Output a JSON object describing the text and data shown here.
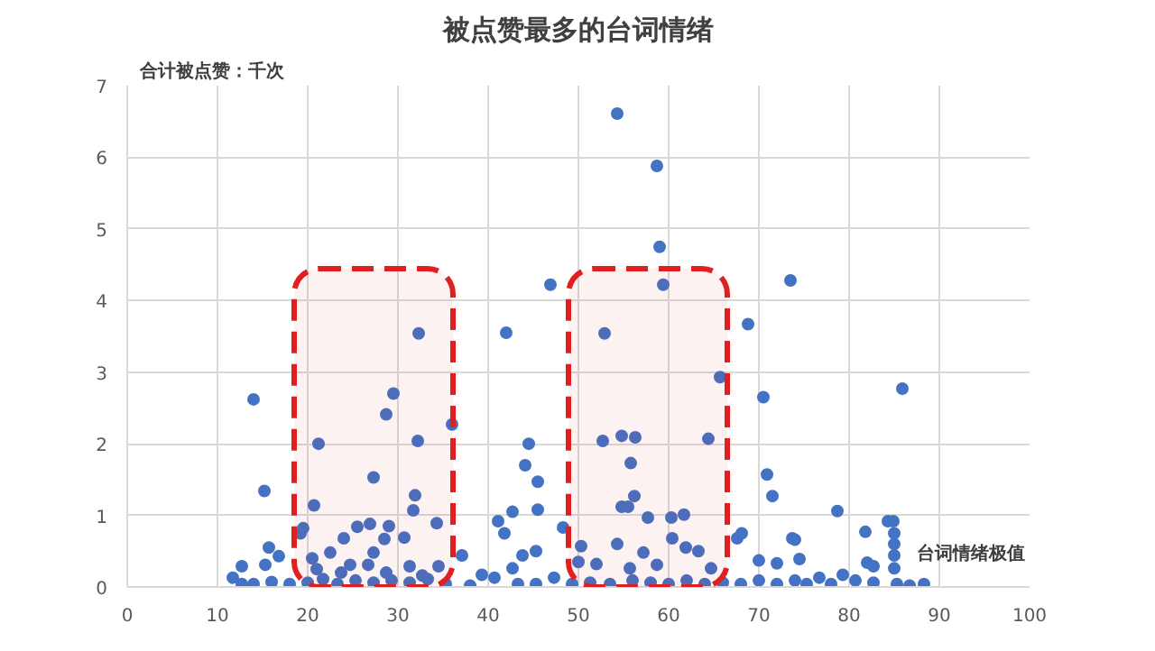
{
  "chart_data": {
    "type": "scatter",
    "title": "被点赞最多的台词情绪",
    "xlabel": "台词情绪极值",
    "ylabel": "合计被点赞：千次",
    "xlim": [
      0,
      100
    ],
    "xticks": [
      0,
      10,
      20,
      30,
      40,
      50,
      60,
      70,
      80,
      90,
      100
    ],
    "ylim": [
      0,
      7
    ],
    "yticks": [
      0,
      1,
      2,
      3,
      4,
      5,
      6,
      7
    ],
    "grid": true,
    "marker": "circle",
    "bands": [
      {
        "axis": "x",
        "from": 18.5,
        "to": 36.1,
        "color": "#e02020"
      },
      {
        "axis": "x",
        "from": 48.9,
        "to": 66.5,
        "color": "#e02020"
      }
    ],
    "series": [
      {
        "color": "#4472c4",
        "x": [
          14.0,
          15.2,
          21.2,
          29.5,
          28.7,
          32.2,
          32.3,
          36.0,
          27.3,
          31.9,
          31.7,
          20.7,
          34.3,
          19.5,
          19.2,
          25.5,
          26.9,
          29.0,
          30.7,
          28.5,
          24.0,
          15.7,
          16.8,
          37.1,
          20.5,
          22.5,
          27.3,
          12.7,
          15.3,
          21.0,
          24.7,
          26.7,
          31.3,
          34.5,
          11.7,
          14.0,
          16.0,
          18.0,
          20.0,
          21.7,
          23.3,
          25.3,
          27.3,
          29.3,
          31.3,
          33.3,
          35.3,
          12.7,
          23.7,
          28.7,
          32.7,
          54.3,
          58.7,
          59.0,
          46.9,
          59.4,
          73.5,
          42.0,
          52.9,
          68.8,
          65.7,
          70.5,
          44.5,
          52.7,
          54.8,
          56.3,
          64.4,
          44.1,
          55.8,
          45.5,
          70.9,
          71.5,
          56.2,
          54.8,
          55.5,
          57.7,
          60.3,
          61.7,
          42.7,
          45.5,
          41.1,
          41.8,
          48.3,
          60.4,
          67.6,
          68.1,
          73.7,
          50.3,
          54.3,
          57.2,
          61.9,
          63.3,
          43.8,
          45.3,
          52.0,
          50.0,
          55.7,
          58.7,
          70.0,
          72.0,
          74.5,
          42.7,
          64.7,
          39.3,
          40.7,
          38.0,
          43.3,
          45.3,
          47.3,
          49.3,
          51.3,
          53.5,
          56.0,
          58.0,
          60.0,
          62.0,
          64.0,
          66.0,
          68.0,
          70.0,
          72.0,
          74.0,
          85.9,
          78.7,
          84.3,
          84.9,
          81.8,
          85.0,
          85.0,
          82.0,
          82.7,
          85.0,
          85.0,
          76.7,
          79.3,
          80.7,
          82.7,
          85.3,
          86.7,
          88.3,
          75.3,
          78.0,
          74.0
        ],
        "values": [
          2.62,
          1.34,
          2.0,
          2.7,
          2.41,
          2.04,
          3.54,
          2.27,
          1.53,
          1.28,
          1.07,
          1.14,
          0.89,
          0.82,
          0.75,
          0.84,
          0.88,
          0.85,
          0.69,
          0.67,
          0.68,
          0.55,
          0.43,
          0.44,
          0.4,
          0.48,
          0.48,
          0.29,
          0.31,
          0.25,
          0.31,
          0.31,
          0.29,
          0.29,
          0.13,
          0.04,
          0.07,
          0.04,
          0.06,
          0.11,
          0.04,
          0.09,
          0.06,
          0.09,
          0.06,
          0.11,
          0.04,
          0.04,
          0.2,
          0.2,
          0.16,
          6.61,
          5.88,
          4.75,
          4.22,
          4.22,
          4.28,
          3.55,
          3.54,
          3.67,
          2.93,
          2.65,
          2.0,
          2.04,
          2.11,
          2.09,
          2.07,
          1.7,
          1.73,
          1.47,
          1.57,
          1.27,
          1.27,
          1.12,
          1.12,
          0.97,
          0.97,
          1.01,
          1.05,
          1.08,
          0.92,
          0.75,
          0.83,
          0.68,
          0.68,
          0.75,
          0.68,
          0.57,
          0.6,
          0.48,
          0.55,
          0.5,
          0.44,
          0.5,
          0.32,
          0.35,
          0.26,
          0.31,
          0.37,
          0.33,
          0.39,
          0.26,
          0.26,
          0.17,
          0.13,
          0.02,
          0.04,
          0.04,
          0.13,
          0.04,
          0.06,
          0.04,
          0.09,
          0.06,
          0.04,
          0.09,
          0.04,
          0.06,
          0.04,
          0.09,
          0.04,
          0.09,
          2.77,
          1.06,
          0.92,
          0.92,
          0.77,
          0.75,
          0.6,
          0.34,
          0.29,
          0.44,
          0.26,
          0.13,
          0.17,
          0.09,
          0.06,
          0.04,
          0.02,
          0.04,
          0.04,
          0.04,
          0.66
        ]
      }
    ]
  }
}
